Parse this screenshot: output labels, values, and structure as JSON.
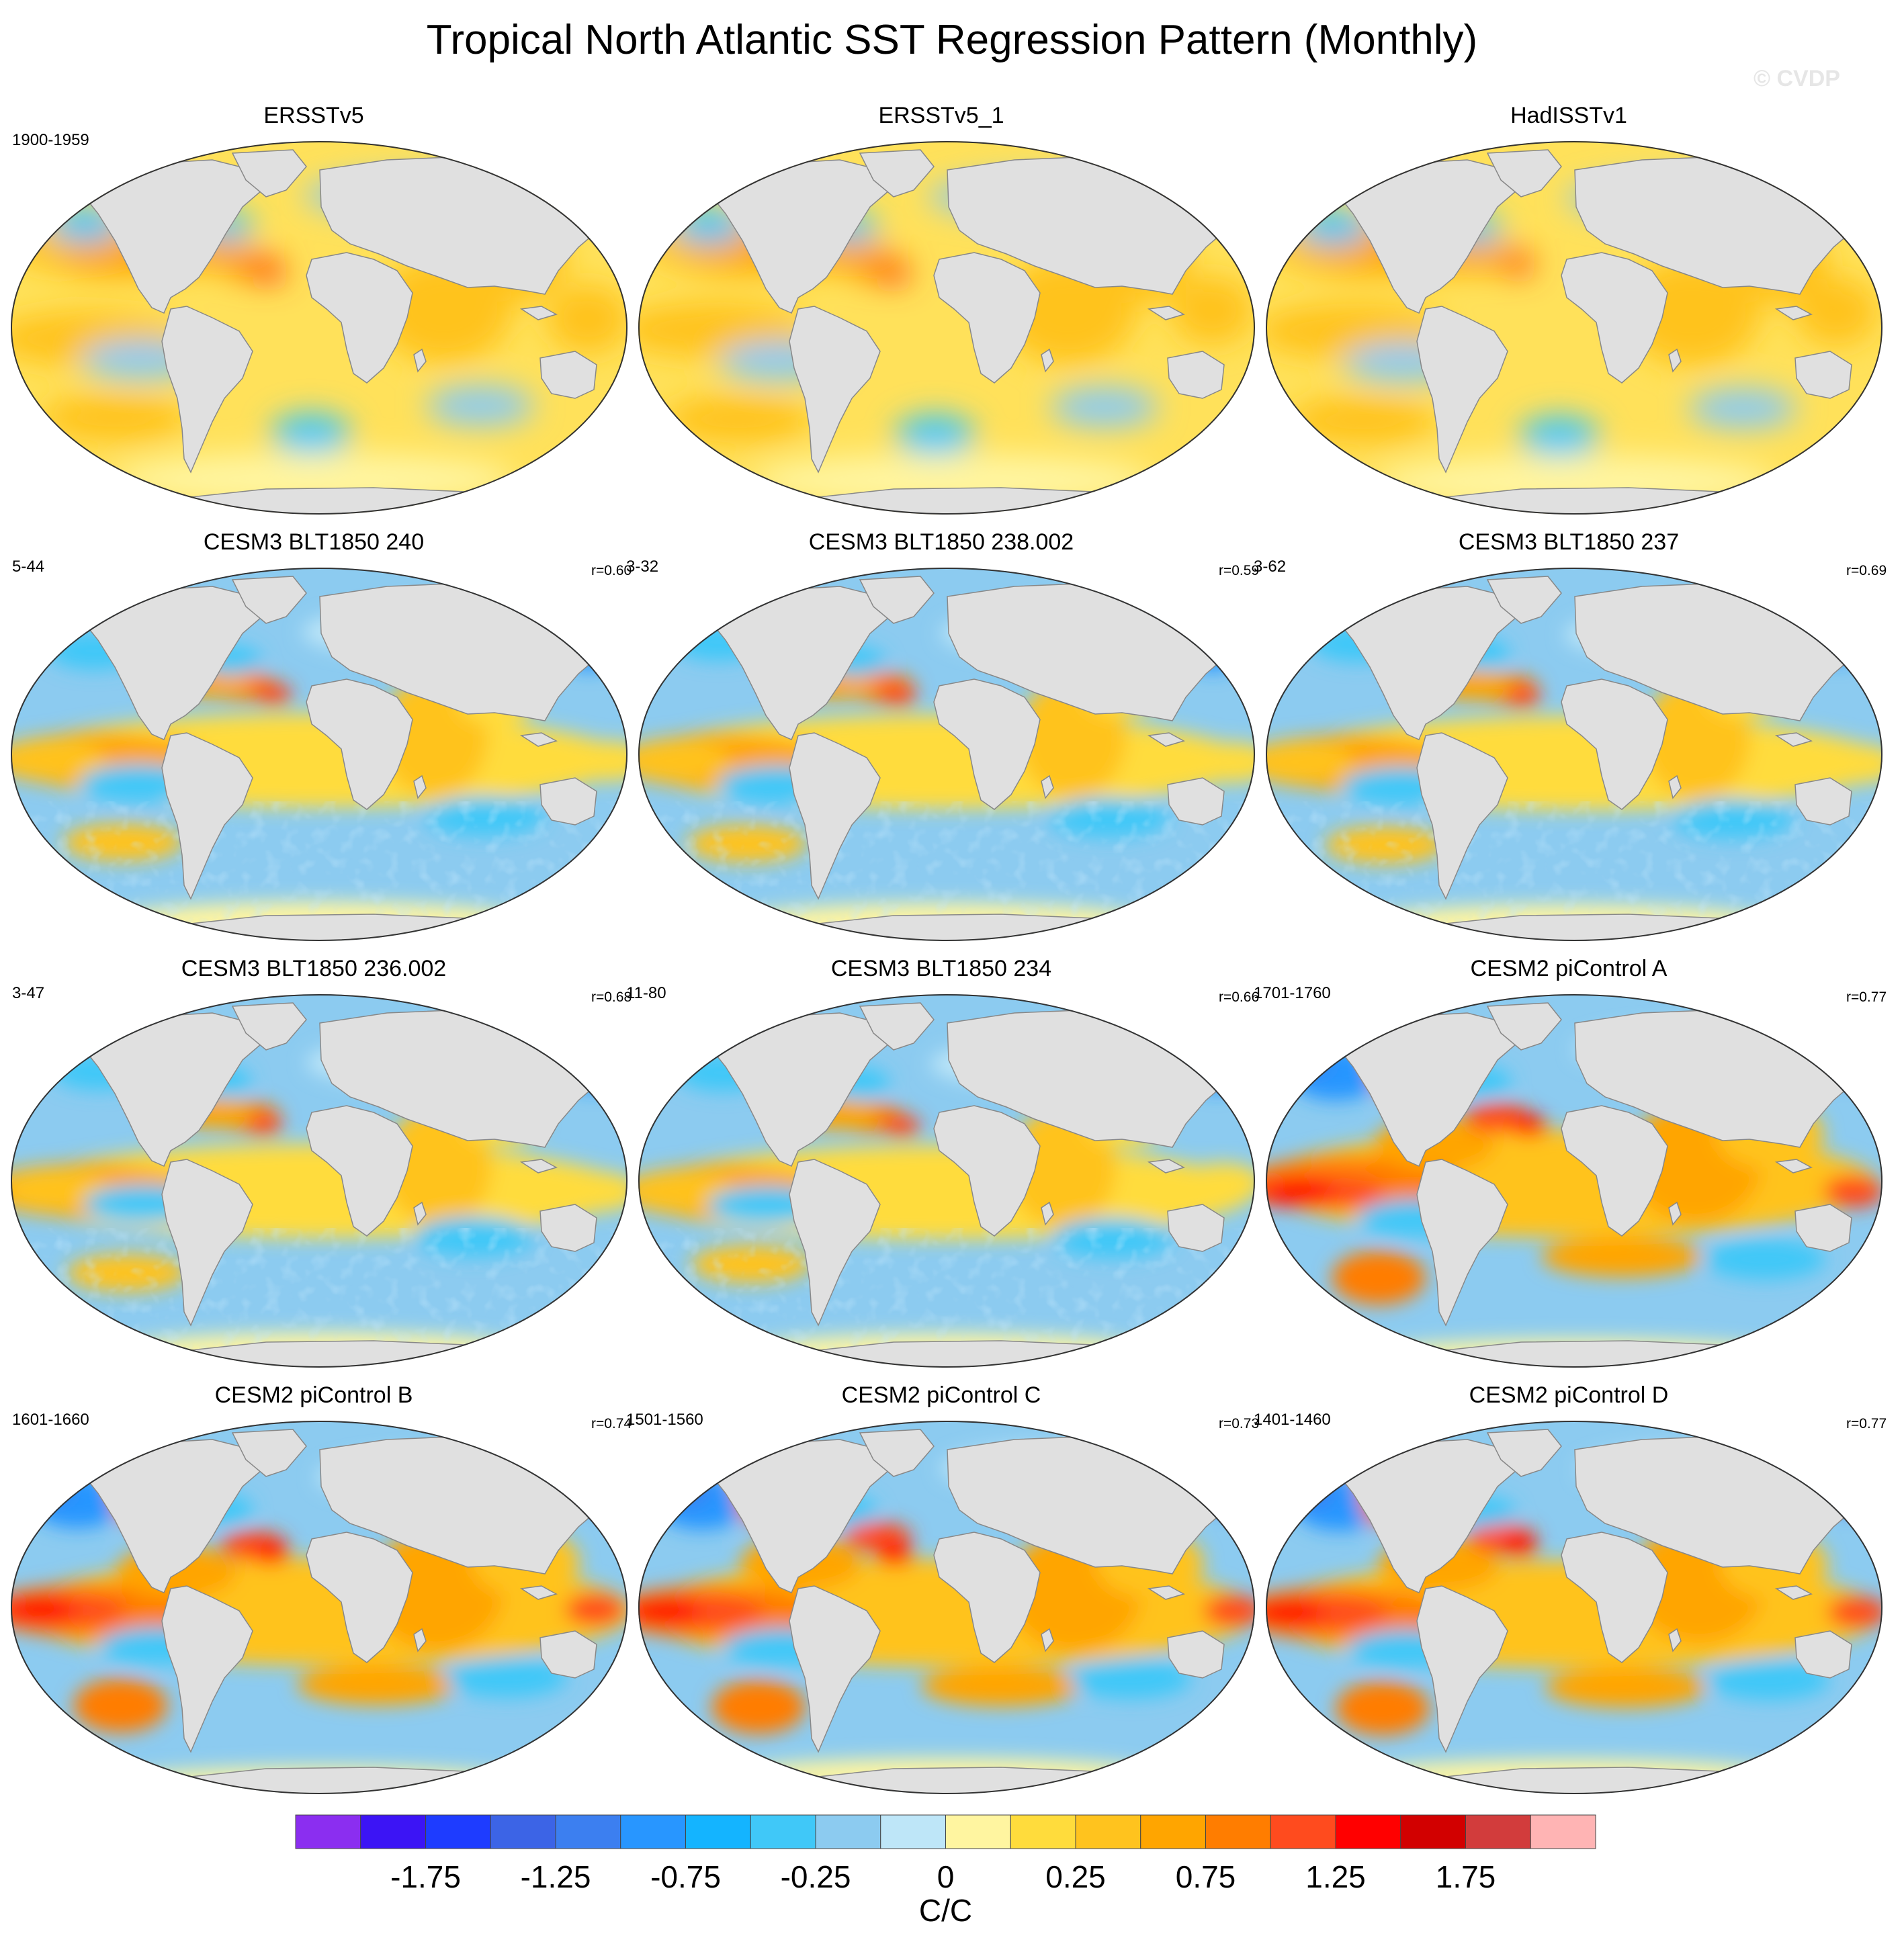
{
  "title": "Tropical North Atlantic SST Regression Pattern (Monthly)",
  "watermark": "© CVDP",
  "panels": [
    {
      "title": "ERSSTv5",
      "years": "1900-1959",
      "r": "",
      "pattern": "obs"
    },
    {
      "title": "ERSSTv5_1",
      "years": "",
      "r": "",
      "pattern": "obs"
    },
    {
      "title": "HadISSTv1",
      "years": "",
      "r": "",
      "pattern": "obs"
    },
    {
      "title": "CESM3 BLT1850 240",
      "years": "5-44",
      "r": "r=0.60",
      "pattern": "cesm3"
    },
    {
      "title": "CESM3 BLT1850 238.002",
      "years": "3-32",
      "r": "r=0.59",
      "pattern": "cesm3"
    },
    {
      "title": "CESM3 BLT1850 237",
      "years": "3-62",
      "r": "r=0.69",
      "pattern": "cesm3"
    },
    {
      "title": "CESM3 BLT1850 236.002",
      "years": "3-47",
      "r": "r=0.68",
      "pattern": "cesm3"
    },
    {
      "title": "CESM3 BLT1850 234",
      "years": "11-80",
      "r": "r=0.66",
      "pattern": "cesm3"
    },
    {
      "title": "CESM2 piControl A",
      "years": "1701-1760",
      "r": "r=0.77",
      "pattern": "cesm2"
    },
    {
      "title": "CESM2 piControl B",
      "years": "1601-1660",
      "r": "r=0.74",
      "pattern": "cesm2"
    },
    {
      "title": "CESM2 piControl C",
      "years": "1501-1560",
      "r": "r=0.73",
      "pattern": "cesm2"
    },
    {
      "title": "CESM2 piControl D",
      "years": "1401-1460",
      "r": "r=0.77",
      "pattern": "cesm2"
    }
  ],
  "chart_data": {
    "type": "heatmap",
    "title": "Tropical North Atlantic SST Regression Pattern (Monthly)",
    "projection": "Robinson (global)",
    "variable": "SST regression on Tropical North Atlantic index",
    "units_label": "C/C",
    "colorbar": {
      "levels": [
        -2.0,
        -1.75,
        -1.5,
        -1.25,
        -1.0,
        -0.75,
        -0.5,
        -0.25,
        -0.1,
        0,
        0.1,
        0.25,
        0.5,
        0.75,
        1.0,
        1.25,
        1.5,
        1.75,
        2.0
      ],
      "tick_labels": [
        "-1.75",
        "-1.25",
        "-0.75",
        "-0.25",
        "0",
        "0.25",
        "0.75",
        "1.25",
        "1.75"
      ],
      "colors": [
        "#8b2ef0",
        "#3c14f5",
        "#1e3cff",
        "#3c64e6",
        "#3c7ff0",
        "#2896ff",
        "#14b4ff",
        "#40c8f8",
        "#8ccbf0",
        "#bee6f8",
        "#fff5a0",
        "#ffdc3c",
        "#ffc31e",
        "#ffa500",
        "#ff7d00",
        "#ff4b1e",
        "#ff0000",
        "#d20000",
        "#d23c3c",
        "#ffb4b4"
      ]
    },
    "panels": [
      {
        "name": "ERSSTv5",
        "period": "1900-1959",
        "pattern_correlation": null
      },
      {
        "name": "ERSSTv5_1",
        "period": null,
        "pattern_correlation": null
      },
      {
        "name": "HadISSTv1",
        "period": null,
        "pattern_correlation": null
      },
      {
        "name": "CESM3 BLT1850 240",
        "period": "5-44",
        "pattern_correlation": 0.6
      },
      {
        "name": "CESM3 BLT1850 238.002",
        "period": "3-32",
        "pattern_correlation": 0.59
      },
      {
        "name": "CESM3 BLT1850 237",
        "period": "3-62",
        "pattern_correlation": 0.69
      },
      {
        "name": "CESM3 BLT1850 236.002",
        "period": "3-47",
        "pattern_correlation": 0.68
      },
      {
        "name": "CESM3 BLT1850 234",
        "period": "11-80",
        "pattern_correlation": 0.66
      },
      {
        "name": "CESM2 piControl A",
        "period": "1701-1760",
        "pattern_correlation": 0.77
      },
      {
        "name": "CESM2 piControl B",
        "period": "1601-1660",
        "pattern_correlation": 0.74
      },
      {
        "name": "CESM2 piControl C",
        "period": "1501-1560",
        "pattern_correlation": 0.73
      },
      {
        "name": "CESM2 piControl D",
        "period": "1401-1460",
        "pattern_correlation": 0.77
      }
    ]
  }
}
